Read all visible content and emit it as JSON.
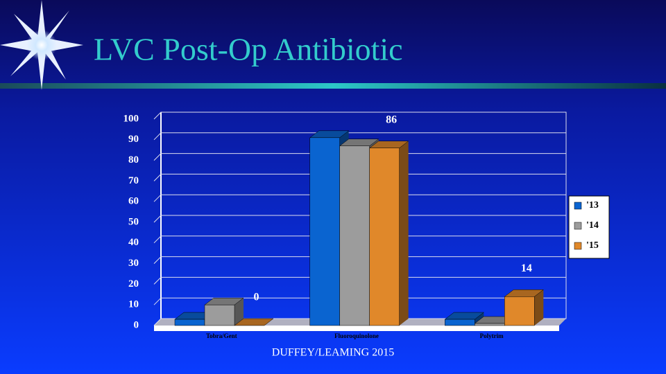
{
  "slide_title": "LVC Post-Op Antibiotic",
  "footer": "DUFFEY/LEAMING 2015",
  "chart_data": {
    "type": "bar3d",
    "categories": [
      "Tobra/Gent",
      "Fluoroquinolone",
      "Polytrim"
    ],
    "series": [
      {
        "name": "'13",
        "color": "#0a64d0",
        "values": [
          3,
          91,
          3
        ]
      },
      {
        "name": "'14",
        "color": "#9c9c9c",
        "values": [
          10,
          87,
          1
        ]
      },
      {
        "name": "'15",
        "color": "#e0882a",
        "values": [
          0,
          86,
          14
        ],
        "data_labels": true
      }
    ],
    "ylim": [
      0,
      100
    ],
    "yticks": [
      0,
      10,
      20,
      30,
      40,
      50,
      60,
      70,
      80,
      90,
      100
    ],
    "grid": true,
    "legend": "right"
  }
}
